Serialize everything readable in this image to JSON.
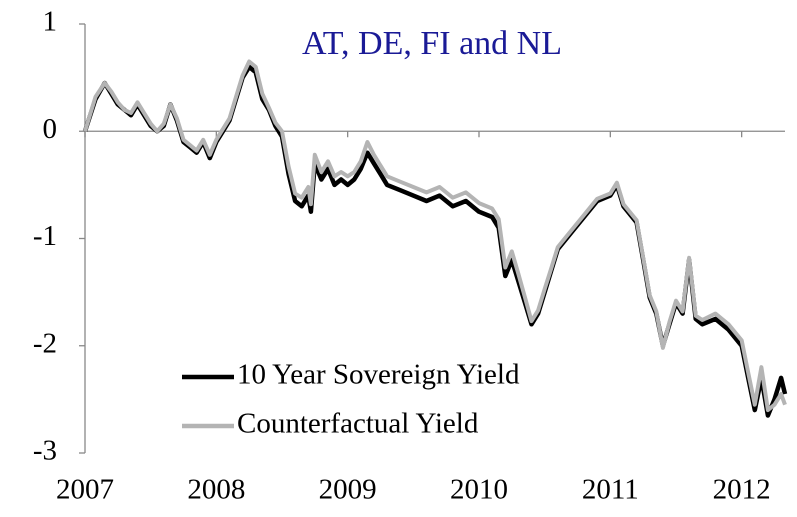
{
  "chart_data": {
    "type": "line",
    "title": "AT, DE, FI and NL",
    "title_color": "#1a1a96",
    "x": [
      2007.0,
      2007.08,
      2007.15,
      2007.2,
      2007.25,
      2007.3,
      2007.35,
      2007.4,
      2007.45,
      2007.5,
      2007.55,
      2007.6,
      2007.65,
      2007.7,
      2007.75,
      2007.8,
      2007.85,
      2007.9,
      2007.95,
      2008.0,
      2008.05,
      2008.1,
      2008.15,
      2008.2,
      2008.25,
      2008.3,
      2008.35,
      2008.4,
      2008.45,
      2008.5,
      2008.55,
      2008.6,
      2008.65,
      2008.7,
      2008.72,
      2008.75,
      2008.8,
      2008.85,
      2008.9,
      2008.95,
      2009.0,
      2009.05,
      2009.1,
      2009.15,
      2009.2,
      2009.25,
      2009.3,
      2009.4,
      2009.5,
      2009.6,
      2009.7,
      2009.8,
      2009.9,
      2010.0,
      2010.1,
      2010.15,
      2010.2,
      2010.25,
      2010.3,
      2010.35,
      2010.4,
      2010.45,
      2010.5,
      2010.55,
      2010.6,
      2010.7,
      2010.8,
      2010.9,
      2011.0,
      2011.05,
      2011.1,
      2011.2,
      2011.25,
      2011.3,
      2011.35,
      2011.4,
      2011.45,
      2011.5,
      2011.55,
      2011.6,
      2011.65,
      2011.7,
      2011.8,
      2011.9,
      2012.0,
      2012.05,
      2012.1,
      2012.15,
      2012.2,
      2012.25,
      2012.3,
      2012.33
    ],
    "series": [
      {
        "name": "10 Year Sovereign Yield",
        "color": "#000000",
        "values": [
          0,
          0.3,
          0.45,
          0.35,
          0.25,
          0.2,
          0.15,
          0.25,
          0.15,
          0.05,
          0,
          0.05,
          0.25,
          0.1,
          -0.1,
          -0.15,
          -0.2,
          -0.1,
          -0.25,
          -0.1,
          0,
          0.1,
          0.3,
          0.5,
          0.6,
          0.55,
          0.3,
          0.2,
          0.05,
          -0.05,
          -0.4,
          -0.65,
          -0.7,
          -0.6,
          -0.75,
          -0.3,
          -0.45,
          -0.35,
          -0.5,
          -0.45,
          -0.5,
          -0.45,
          -0.35,
          -0.2,
          -0.3,
          -0.4,
          -0.5,
          -0.55,
          -0.6,
          -0.65,
          -0.6,
          -0.7,
          -0.65,
          -0.75,
          -0.8,
          -0.9,
          -1.35,
          -1.2,
          -1.4,
          -1.6,
          -1.8,
          -1.7,
          -1.5,
          -1.3,
          -1.1,
          -0.95,
          -0.8,
          -0.65,
          -0.6,
          -0.5,
          -0.7,
          -0.85,
          -1.2,
          -1.55,
          -1.7,
          -2.0,
          -1.8,
          -1.6,
          -1.7,
          -1.2,
          -1.75,
          -1.8,
          -1.75,
          -1.85,
          -2.0,
          -2.3,
          -2.6,
          -2.3,
          -2.65,
          -2.5,
          -2.3,
          -2.45
        ]
      },
      {
        "name": "Counterfactual Yield",
        "color": "#b4b4b4",
        "values": [
          0,
          0.32,
          0.45,
          0.37,
          0.27,
          0.2,
          0.17,
          0.27,
          0.17,
          0.07,
          0,
          0.07,
          0.25,
          0.12,
          -0.08,
          -0.13,
          -0.18,
          -0.08,
          -0.22,
          -0.08,
          0.02,
          0.12,
          0.32,
          0.52,
          0.65,
          0.6,
          0.35,
          0.22,
          0.08,
          0,
          -0.33,
          -0.58,
          -0.62,
          -0.52,
          -0.68,
          -0.22,
          -0.38,
          -0.28,
          -0.42,
          -0.38,
          -0.42,
          -0.38,
          -0.28,
          -0.1,
          -0.22,
          -0.32,
          -0.42,
          -0.47,
          -0.52,
          -0.57,
          -0.52,
          -0.62,
          -0.57,
          -0.67,
          -0.72,
          -0.82,
          -1.27,
          -1.12,
          -1.33,
          -1.55,
          -1.77,
          -1.67,
          -1.47,
          -1.28,
          -1.08,
          -0.93,
          -0.78,
          -0.63,
          -0.58,
          -0.48,
          -0.68,
          -0.83,
          -1.18,
          -1.53,
          -1.68,
          -2.02,
          -1.78,
          -1.58,
          -1.68,
          -1.18,
          -1.72,
          -1.76,
          -1.7,
          -1.8,
          -1.95,
          -2.25,
          -2.55,
          -2.2,
          -2.6,
          -2.55,
          -2.45,
          -2.55
        ]
      }
    ],
    "xlim": [
      2007,
      2012.33
    ],
    "xticks": [
      2007,
      2008,
      2009,
      2010,
      2011,
      2012
    ],
    "ylim": [
      -3,
      1
    ],
    "yticks": [
      1,
      0,
      -1,
      -2,
      -3
    ],
    "grid": false,
    "legend": "lower center"
  }
}
